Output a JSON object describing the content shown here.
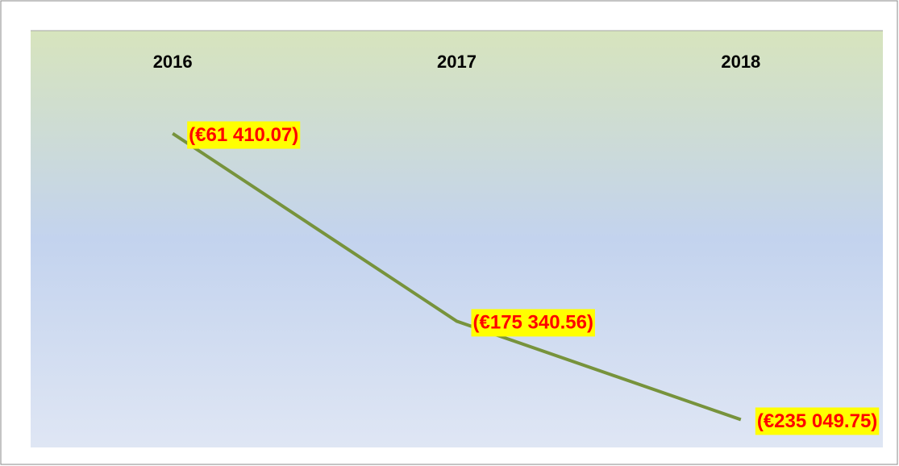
{
  "chart_data": {
    "type": "line",
    "categories": [
      "2016",
      "2017",
      "2018"
    ],
    "values": [
      -61410.07,
      -175340.56,
      -235049.75
    ],
    "value_labels": [
      "(€61 410.07)",
      "(€175 340.56)",
      "(€235 049.75)"
    ],
    "color": "#77933c",
    "ylim": [
      -250000,
      0
    ]
  }
}
